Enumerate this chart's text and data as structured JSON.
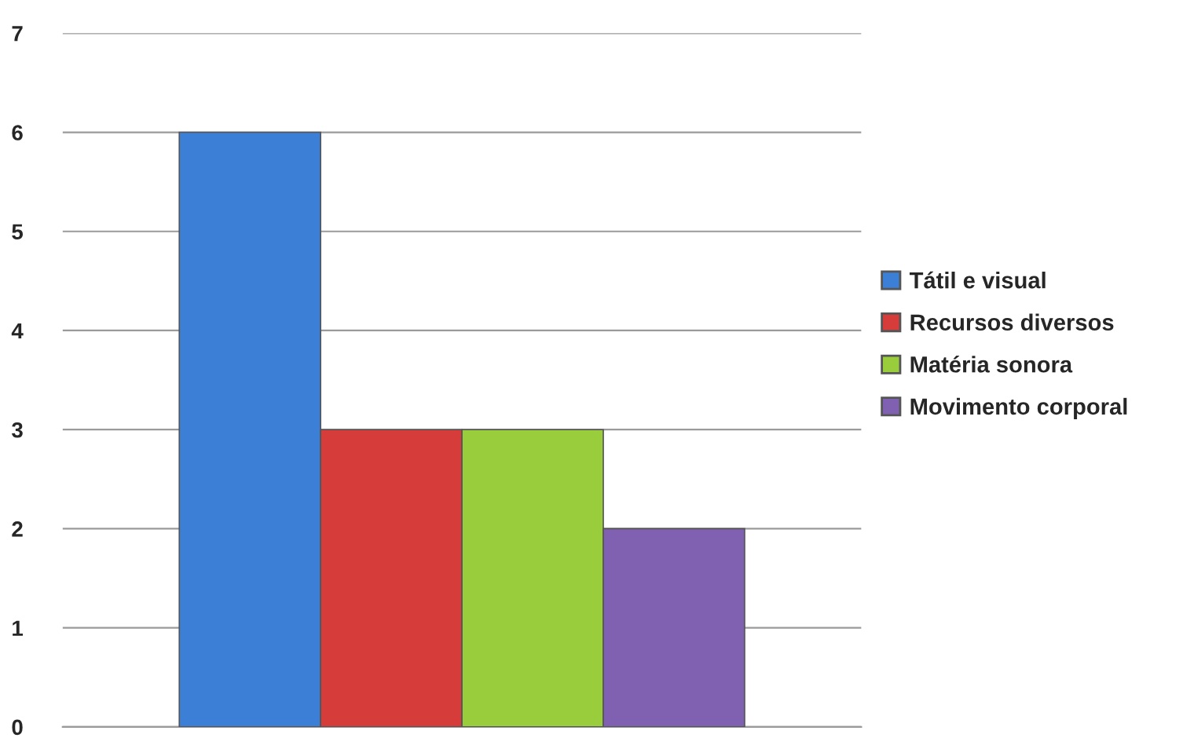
{
  "chart_data": {
    "type": "bar",
    "categories": [
      null
    ],
    "series": [
      {
        "name": "Tátil e visual",
        "color": "#3c7fd6",
        "values": [
          6
        ]
      },
      {
        "name": "Recursos diversos",
        "color": "#d63c3a",
        "values": [
          3
        ]
      },
      {
        "name": "Matéria sonora",
        "color": "#9acd3c",
        "values": [
          3
        ]
      },
      {
        "name": "Movimento corporal",
        "color": "#8060b0",
        "values": [
          2
        ]
      }
    ],
    "ylim": [
      0,
      7
    ],
    "yticks": [
      0,
      1,
      2,
      3,
      4,
      5,
      6,
      7
    ],
    "grid": "y",
    "legend": "right",
    "tick_labels": "y"
  }
}
